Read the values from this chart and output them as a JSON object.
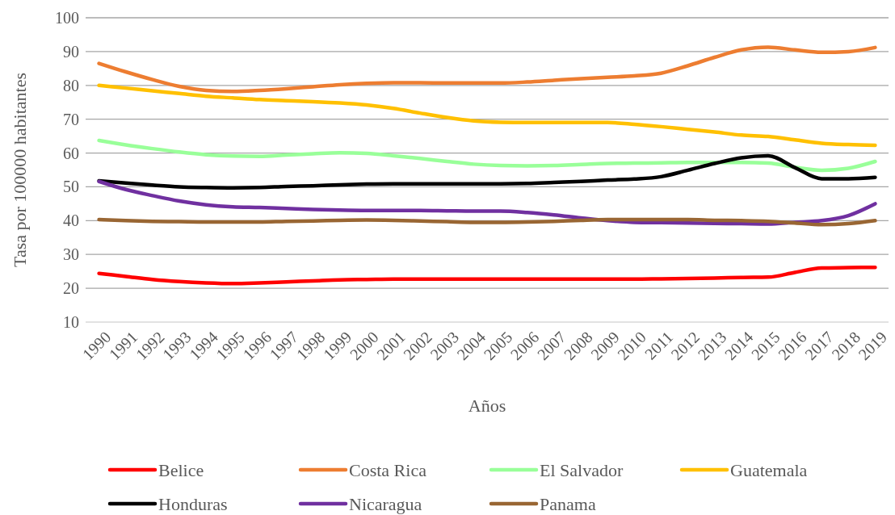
{
  "chart_data": {
    "type": "line",
    "xlabel": "Años",
    "ylabel": "Tasa por 100000 habitantes",
    "categories": [
      "1990",
      "1991",
      "1992",
      "1993",
      "1994",
      "1995",
      "1996",
      "1997",
      "1998",
      "1999",
      "2000",
      "2001",
      "2002",
      "2003",
      "2004",
      "2005",
      "2006",
      "2007",
      "2008",
      "2009",
      "2010",
      "2011",
      "2012",
      "2013",
      "2014",
      "2015",
      "2016",
      "2017",
      "2018",
      "2019"
    ],
    "ylim": [
      10,
      100
    ],
    "yticks": [
      10,
      20,
      30,
      40,
      50,
      60,
      70,
      80,
      90,
      100
    ],
    "grid": "y",
    "legend": "bottom",
    "marker": "none",
    "line_style": "solid",
    "series": [
      {
        "name": "Belice",
        "color": "#ff0000",
        "values": [
          24.4,
          23.5,
          22.6,
          22,
          21.6,
          21.4,
          21.6,
          21.9,
          22.2,
          22.5,
          22.6,
          22.7,
          22.7,
          22.7,
          22.7,
          22.7,
          22.7,
          22.7,
          22.7,
          22.7,
          22.7,
          22.8,
          22.9,
          23,
          23.2,
          23.3,
          24.7,
          26,
          26.1,
          26.2
        ]
      },
      {
        "name": "Costa Rica",
        "color": "#ed7d31",
        "values": [
          86.5,
          84,
          81.7,
          79.7,
          78.5,
          78.2,
          78.5,
          79,
          79.6,
          80.2,
          80.6,
          80.8,
          80.8,
          80.7,
          80.7,
          80.7,
          81,
          81.5,
          82,
          82.4,
          82.8,
          83.6,
          85.8,
          88.3,
          90.5,
          91.3,
          90.5,
          89.8,
          90,
          91.2
        ]
      },
      {
        "name": "El Salvador",
        "color": "#99ff99",
        "values": [
          63.7,
          62.4,
          61.3,
          60.3,
          59.5,
          59.1,
          59,
          59.4,
          59.8,
          60.1,
          59.9,
          59.2,
          58.4,
          57.5,
          56.7,
          56.3,
          56.2,
          56.3,
          56.6,
          56.9,
          57,
          57.1,
          57.2,
          57.2,
          57.2,
          57,
          55.8,
          54.9,
          55.5,
          57.5
        ]
      },
      {
        "name": "Guatemala",
        "color": "#ffc000",
        "values": [
          80,
          79.2,
          78.4,
          77.6,
          76.8,
          76.3,
          75.8,
          75.5,
          75.2,
          74.8,
          74.2,
          73.2,
          71.8,
          70.5,
          69.5,
          69.1,
          69,
          69,
          69,
          69,
          68.5,
          67.8,
          67,
          66.2,
          65.3,
          64.9,
          63.9,
          62.9,
          62.5,
          62.3
        ]
      },
      {
        "name": "Honduras",
        "color": "#000000",
        "values": [
          51.8,
          51.1,
          50.5,
          50,
          49.8,
          49.7,
          49.8,
          50.1,
          50.3,
          50.6,
          50.8,
          50.9,
          50.9,
          50.9,
          50.9,
          50.9,
          51,
          51.3,
          51.6,
          52,
          52.3,
          53,
          54.9,
          56.9,
          58.6,
          59.2,
          55.7,
          52.4,
          52.4,
          52.8
        ]
      },
      {
        "name": "Nicaragua",
        "color": "#7030a0",
        "values": [
          51.6,
          49.2,
          47.4,
          45.8,
          44.7,
          44.1,
          43.9,
          43.6,
          43.3,
          43.1,
          43,
          43,
          43,
          42.9,
          42.8,
          42.8,
          42.4,
          41.7,
          40.8,
          40,
          39.5,
          39.4,
          39.3,
          39.2,
          39.1,
          39,
          39.5,
          40,
          41.5,
          45
        ]
      },
      {
        "name": "Panama",
        "color": "#996633",
        "values": [
          40.3,
          40,
          39.8,
          39.7,
          39.6,
          39.6,
          39.6,
          39.8,
          39.9,
          40.1,
          40.2,
          40.1,
          39.9,
          39.7,
          39.5,
          39.5,
          39.6,
          39.8,
          40.1,
          40.3,
          40.3,
          40.3,
          40.3,
          40.1,
          40,
          39.8,
          39.3,
          38.8,
          39.1,
          40
        ]
      }
    ]
  }
}
